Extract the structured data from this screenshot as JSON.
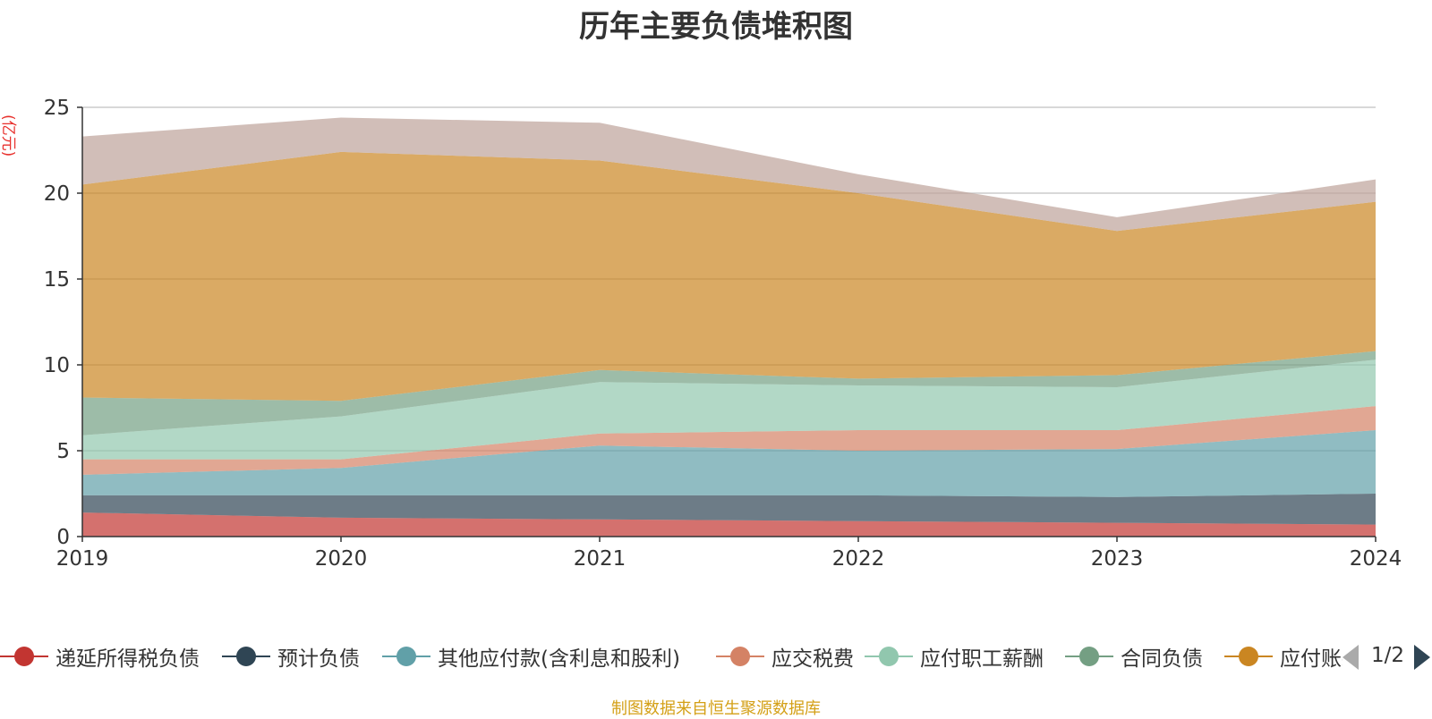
{
  "chart_data": {
    "type": "area",
    "stacked": true,
    "title": "历年主要负债堆积图",
    "unit": "(亿元)",
    "x": [
      "2019",
      "2020",
      "2021",
      "2022",
      "2023",
      "2024"
    ],
    "ylim": [
      0,
      25
    ],
    "yticks": [
      "0",
      "5",
      "10",
      "15",
      "20",
      "25"
    ],
    "grid": true,
    "legend_position": "bottom",
    "series": [
      {
        "name": "递延所得税负债",
        "color": "#c23531",
        "values": [
          1.4,
          1.1,
          1.0,
          0.9,
          0.8,
          0.7
        ]
      },
      {
        "name": "预计负债",
        "color": "#2f4554",
        "values": [
          1.0,
          1.3,
          1.4,
          1.5,
          1.5,
          1.8
        ]
      },
      {
        "name": "其他应付款(含利息和股利)",
        "color": "#61a0a8",
        "values": [
          1.2,
          1.6,
          2.9,
          2.6,
          2.8,
          3.7
        ]
      },
      {
        "name": "应交税费",
        "color": "#d48265",
        "values": [
          0.9,
          0.5,
          0.7,
          1.2,
          1.1,
          1.4
        ]
      },
      {
        "name": "应付职工薪酬",
        "color": "#91c7ae",
        "values": [
          1.4,
          2.5,
          3.0,
          2.6,
          2.5,
          2.7
        ]
      },
      {
        "name": "合同负债",
        "color": "#749f83",
        "values": [
          2.2,
          0.9,
          0.7,
          0.4,
          0.7,
          0.5
        ]
      },
      {
        "name": "应付账款",
        "color": "#ca8622",
        "values": [
          12.4,
          14.5,
          12.2,
          10.8,
          8.4,
          8.7
        ]
      },
      {
        "name": "",
        "color": "#bda29a",
        "values": [
          2.8,
          2.0,
          2.2,
          1.1,
          0.8,
          1.3
        ]
      }
    ]
  },
  "legend": {
    "items": [
      {
        "label": "递延所得税负债",
        "color": "#c23531"
      },
      {
        "label": "预计负债",
        "color": "#2f4554"
      },
      {
        "label": "其他应付款(含利息和股利)",
        "color": "#61a0a8"
      },
      {
        "label": "应交税费",
        "color": "#d48265"
      },
      {
        "label": "应付职工薪酬",
        "color": "#91c7ae"
      },
      {
        "label": "合同负债",
        "color": "#749f83"
      },
      {
        "label": "应付账款",
        "color": "#ca8622"
      }
    ],
    "page": "1/2"
  },
  "source": "制图数据来自恒生聚源数据库"
}
